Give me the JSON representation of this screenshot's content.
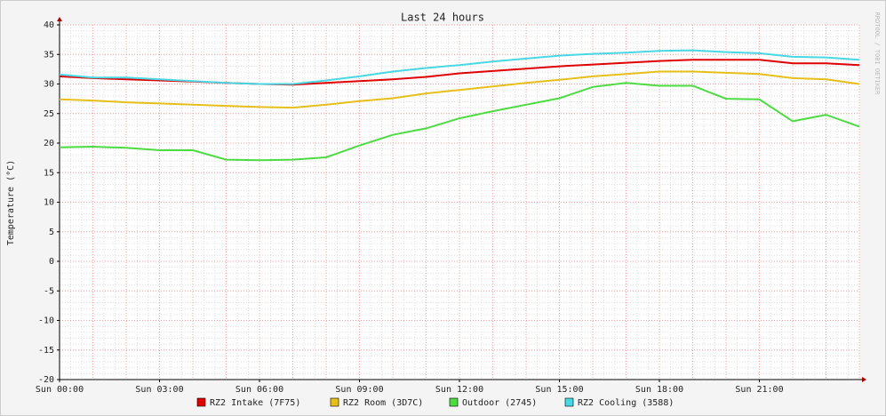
{
  "chart_data": {
    "type": "line",
    "title": "Last 24 hours",
    "y_label": "Temperature (°C)",
    "watermark": "RRDTOOL / TOBI OETIKER",
    "categories": [
      "Sun 00:00",
      null,
      null,
      "Sun 03:00",
      null,
      null,
      "Sun 06:00",
      null,
      null,
      "Sun 09:00",
      null,
      null,
      "Sun 12:00",
      null,
      null,
      "Sun 15:00",
      null,
      null,
      "Sun 18:00",
      null,
      null,
      "Sun 21:00",
      null,
      null,
      null
    ],
    "series": [
      {
        "name": "RZ2 Intake (7F75)",
        "color": "#e00000",
        "values": [
          31.3,
          31.0,
          30.8,
          30.6,
          30.4,
          30.2,
          30.0,
          29.9,
          30.2,
          30.5,
          30.8,
          31.2,
          31.8,
          32.2,
          32.6,
          33.0,
          33.3,
          33.6,
          33.9,
          34.1,
          34.1,
          34.1,
          33.5,
          33.5,
          33.2
        ]
      },
      {
        "name": "RZ2 Room (3D7C)",
        "color": "#e6bf1a",
        "values": [
          27.4,
          27.2,
          26.9,
          26.7,
          26.5,
          26.3,
          26.1,
          26.0,
          26.5,
          27.1,
          27.6,
          28.4,
          29.0,
          29.6,
          30.2,
          30.7,
          31.3,
          31.7,
          32.1,
          32.1,
          31.9,
          31.7,
          31.0,
          30.8,
          30.0
        ]
      },
      {
        "name": "Outdoor (2745)",
        "color": "#4cdc42",
        "values": [
          19.3,
          19.4,
          19.2,
          18.8,
          18.8,
          17.2,
          17.1,
          17.2,
          17.6,
          19.6,
          21.4,
          22.5,
          24.2,
          25.4,
          26.5,
          27.6,
          29.5,
          30.2,
          29.7,
          29.7,
          27.5,
          27.4,
          23.7,
          24.8,
          22.8
        ]
      },
      {
        "name": "RZ2 Cooling (3588)",
        "color": "#48d8e4",
        "values": [
          31.6,
          31.1,
          31.1,
          30.8,
          30.5,
          30.2,
          30.0,
          30.0,
          30.6,
          31.3,
          32.1,
          32.7,
          33.2,
          33.8,
          34.3,
          34.8,
          35.1,
          35.3,
          35.6,
          35.7,
          35.4,
          35.2,
          34.6,
          34.5,
          34.1
        ]
      }
    ],
    "ylim": [
      -20,
      40
    ],
    "yticks": [
      -20,
      -15,
      -10,
      -5,
      0,
      5,
      10,
      15,
      20,
      25,
      30,
      35,
      40
    ],
    "grid": true
  }
}
